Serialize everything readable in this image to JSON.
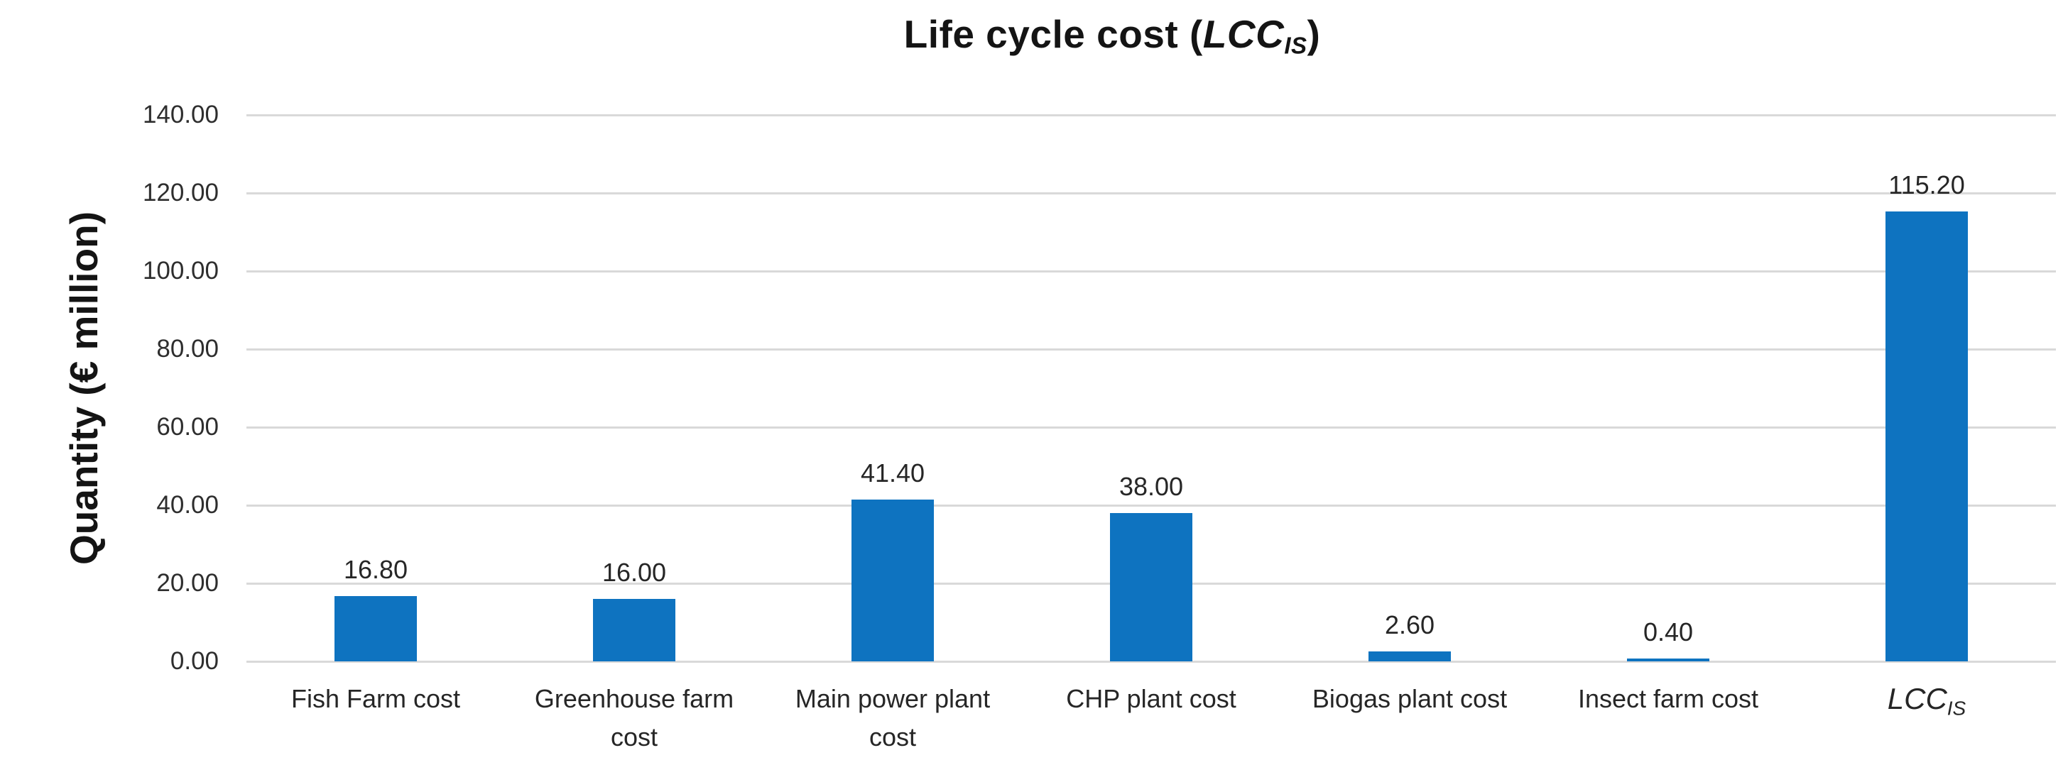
{
  "chart_data": {
    "type": "bar",
    "title": "Life cycle cost (LCC_IS)",
    "title_parts": {
      "prefix": "Life cycle cost (",
      "italic": "LCC",
      "sub": "IS",
      "suffix": ")"
    },
    "ylabel": "Quantity (€ million)",
    "xlabel": "",
    "ylim": [
      0,
      140
    ],
    "grid": true,
    "legend": "none",
    "categories": [
      "Fish Farm cost",
      "Greenhouse farm cost",
      "Main power plant cost",
      "CHP plant cost",
      "Biogas plant cost",
      "Insect farm cost",
      "LCC_IS"
    ],
    "categories_render": [
      {
        "lines": [
          "Fish Farm cost"
        ]
      },
      {
        "lines": [
          "Greenhouse farm",
          "cost"
        ]
      },
      {
        "lines": [
          "Main power plant",
          "cost"
        ]
      },
      {
        "lines": [
          "CHP plant cost"
        ]
      },
      {
        "lines": [
          "Biogas plant cost"
        ]
      },
      {
        "lines": [
          "Insect farm cost"
        ]
      },
      {
        "italic_main": "LCC",
        "italic_sub": "IS"
      }
    ],
    "values": [
      16.8,
      16.0,
      41.4,
      38.0,
      2.6,
      0.4,
      115.2
    ],
    "data_labels": [
      "16.80",
      "16.00",
      "41.40",
      "38.00",
      "2.60",
      "0.40",
      "115.20"
    ],
    "ytick_values": [
      0,
      20,
      40,
      60,
      80,
      100,
      120,
      140
    ],
    "ytick_labels": [
      "0.00",
      "20.00",
      "40.00",
      "60.00",
      "80.00",
      "100.00",
      "120.00",
      "140.00"
    ],
    "bar_color": "#0e73c0",
    "gridline_color": "#d9d9d9",
    "text_color": "#262626"
  }
}
